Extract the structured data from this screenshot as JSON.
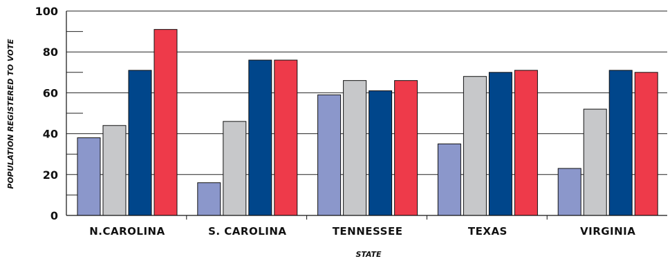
{
  "chart_data": {
    "type": "bar",
    "title": "",
    "xlabel": "STATE",
    "ylabel": "POPULATION REGISTERED TO VOTE",
    "ylim": [
      0,
      100
    ],
    "yticks": [
      0,
      20,
      40,
      60,
      80,
      100
    ],
    "grid": true,
    "categories": [
      "N.CAROLINA",
      "S. CAROLINA",
      "TENNESSEE",
      "TEXAS",
      "VIRGINIA"
    ],
    "series": [
      {
        "color": "#8b97cb",
        "values": [
          38,
          16,
          59,
          35,
          23
        ]
      },
      {
        "color": "#c7c8ca",
        "values": [
          44,
          46,
          66,
          68,
          52
        ]
      },
      {
        "color": "#00468b",
        "values": [
          71,
          76,
          61,
          70,
          71
        ]
      },
      {
        "color": "#ee3a4a",
        "values": [
          91,
          76,
          66,
          71,
          70
        ]
      }
    ]
  }
}
